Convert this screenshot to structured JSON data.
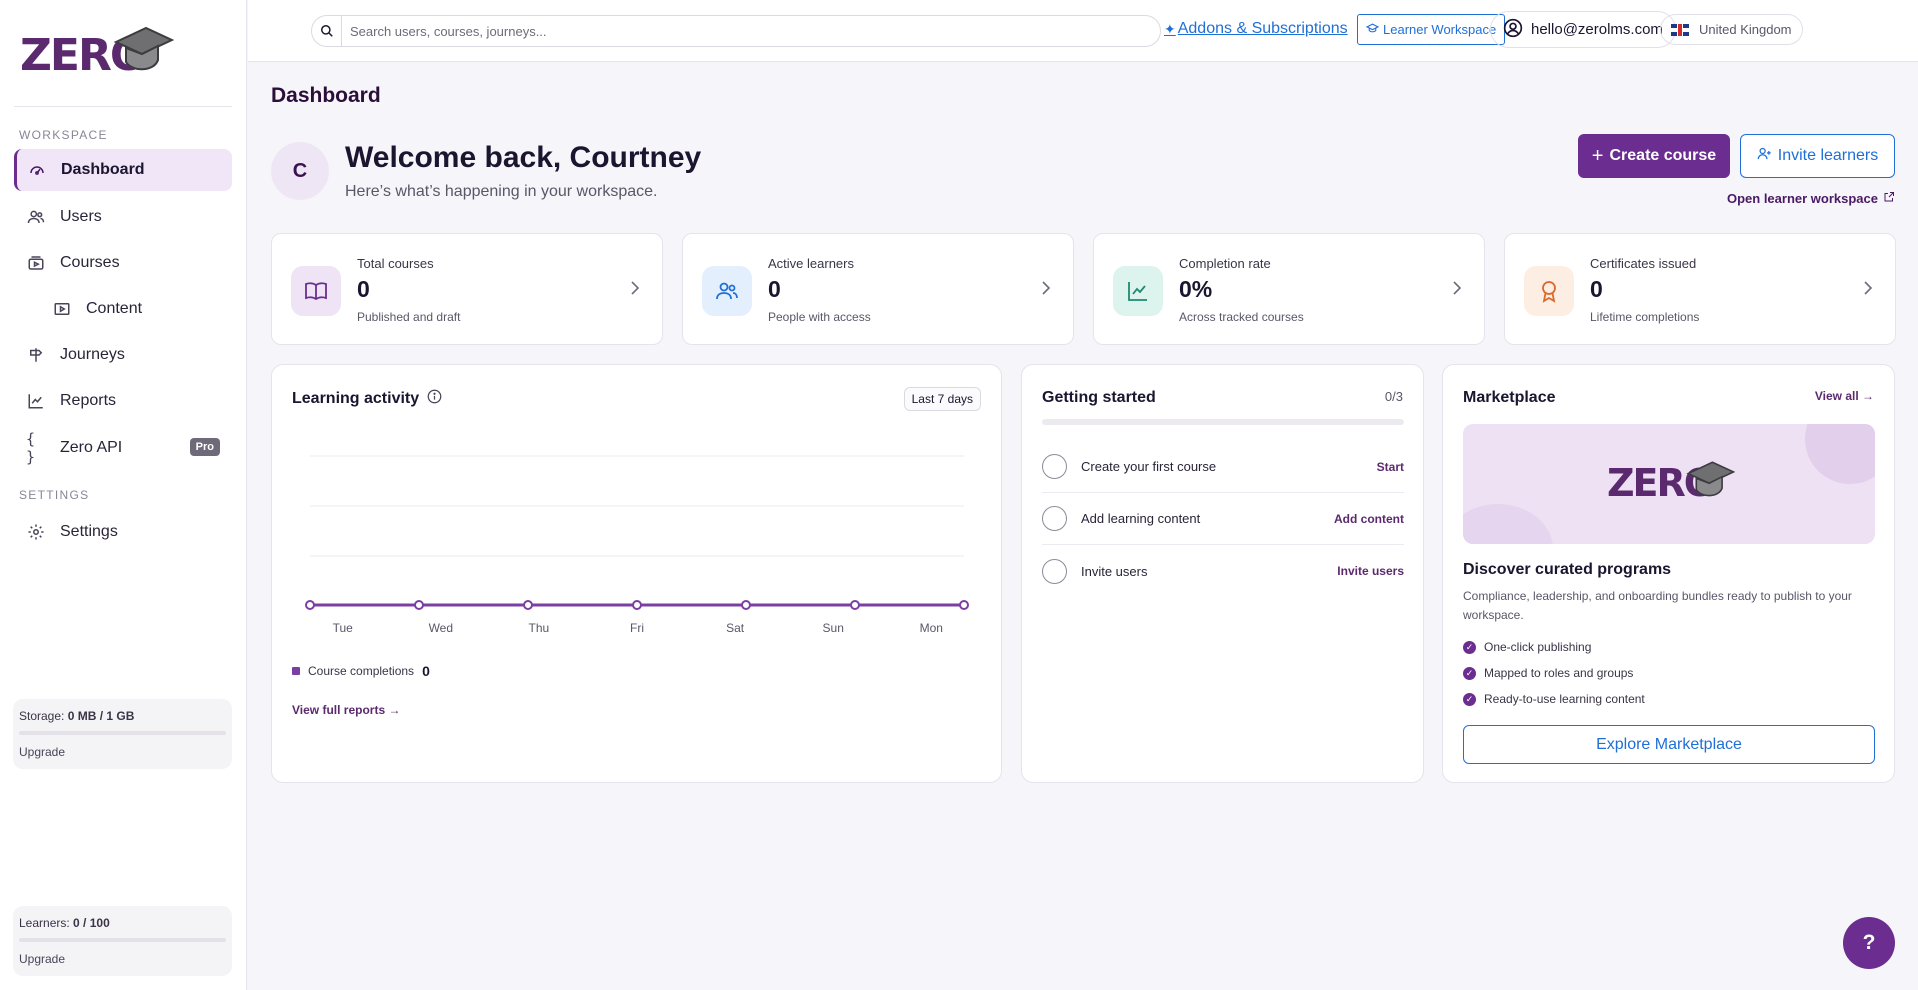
{
  "sidebar": {
    "workspace_label": "WORKSPACE",
    "settings_label": "SETTINGS",
    "items": [
      {
        "label": "Dashboard",
        "icon": "dashboard-gauge-icon"
      },
      {
        "label": "Users",
        "icon": "users-icon"
      },
      {
        "label": "Courses",
        "icon": "courses-icon"
      },
      {
        "label": "Content",
        "icon": "content-play-icon"
      },
      {
        "label": "Journeys",
        "icon": "signpost-icon"
      },
      {
        "label": "Reports",
        "icon": "line-chart-icon"
      },
      {
        "label": "Zero API",
        "icon": "braces-icon",
        "badge": "Pro"
      }
    ],
    "settings_item": {
      "label": "Settings",
      "icon": "gear-icon"
    },
    "storage": {
      "prefix": "Storage:",
      "value": "0 MB / 1 GB",
      "fill": 0.0,
      "upgrade": "Upgrade"
    },
    "learners": {
      "prefix": "Learners:",
      "value": "0 / 100",
      "fill": 0.0,
      "upgrade": "Upgrade"
    }
  },
  "topbar": {
    "search_placeholder": "Search users, courses, journeys...",
    "addons": "Addons & Subscriptions",
    "learner_workspace": "Learner Workspace",
    "user_email": "hello@zerolms.com",
    "locale": "United Kingdom"
  },
  "header": {
    "title": "Dashboard",
    "avatar_initial": "C",
    "welcome": "Welcome back, Courtney",
    "subtitle": "Here’s what’s happening in your workspace.",
    "create_course": "Create course",
    "invite_learners": "Invite learners",
    "open_learner_workspace": "Open learner workspace"
  },
  "stats": [
    {
      "title": "Total courses",
      "value": "0",
      "sub": "Published and draft",
      "icon": "book-icon",
      "color": "#efe4f6",
      "icon_color": "#6b2d8f"
    },
    {
      "title": "Active learners",
      "value": "0",
      "sub": "People with access",
      "icon": "users-icon",
      "color": "#e3effd",
      "icon_color": "#1f6fd6"
    },
    {
      "title": "Completion rate",
      "value": "0%",
      "sub": "Across tracked courses",
      "icon": "trend-up-icon",
      "color": "#ddf3ee",
      "icon_color": "#1f8a70"
    },
    {
      "title": "Certificates issued",
      "value": "0",
      "sub": "Lifetime completions",
      "icon": "award-icon",
      "color": "#fdeee3",
      "icon_color": "#d96a2b"
    }
  ],
  "activity": {
    "title": "Learning activity",
    "range": "Last 7 days",
    "legend_label": "Course completions",
    "legend_value": "0",
    "view_reports": "View full reports →"
  },
  "chart_data": {
    "type": "line",
    "categories": [
      "Tue",
      "Wed",
      "Thu",
      "Fri",
      "Sat",
      "Sun",
      "Mon"
    ],
    "series": [
      {
        "name": "Course completions",
        "values": [
          0,
          0,
          0,
          0,
          0,
          0,
          0
        ]
      }
    ],
    "grid": true,
    "color": "#7b3fa3"
  },
  "getting_started": {
    "title": "Getting started",
    "progress": "0/3",
    "progress_fraction": 0.0,
    "steps": [
      {
        "label": "Create your first course",
        "action": "Start"
      },
      {
        "label": "Add learning content",
        "action": "Add content"
      },
      {
        "label": "Invite users",
        "action": "Invite users"
      }
    ]
  },
  "marketplace": {
    "title": "Marketplace",
    "view_all": "View all →",
    "logo_text": "ZERO",
    "heading": "Discover curated programs",
    "description": "Compliance, leadership, and onboarding bundles ready to publish to your workspace.",
    "features": [
      "One-click publishing",
      "Mapped to roles and groups",
      "Ready-to-use learning content"
    ],
    "button": "Explore Marketplace"
  },
  "brand": {
    "logo_text": "ZERO",
    "accent": "#6b2d8f",
    "link": "#1f6fd6"
  },
  "help": "?"
}
